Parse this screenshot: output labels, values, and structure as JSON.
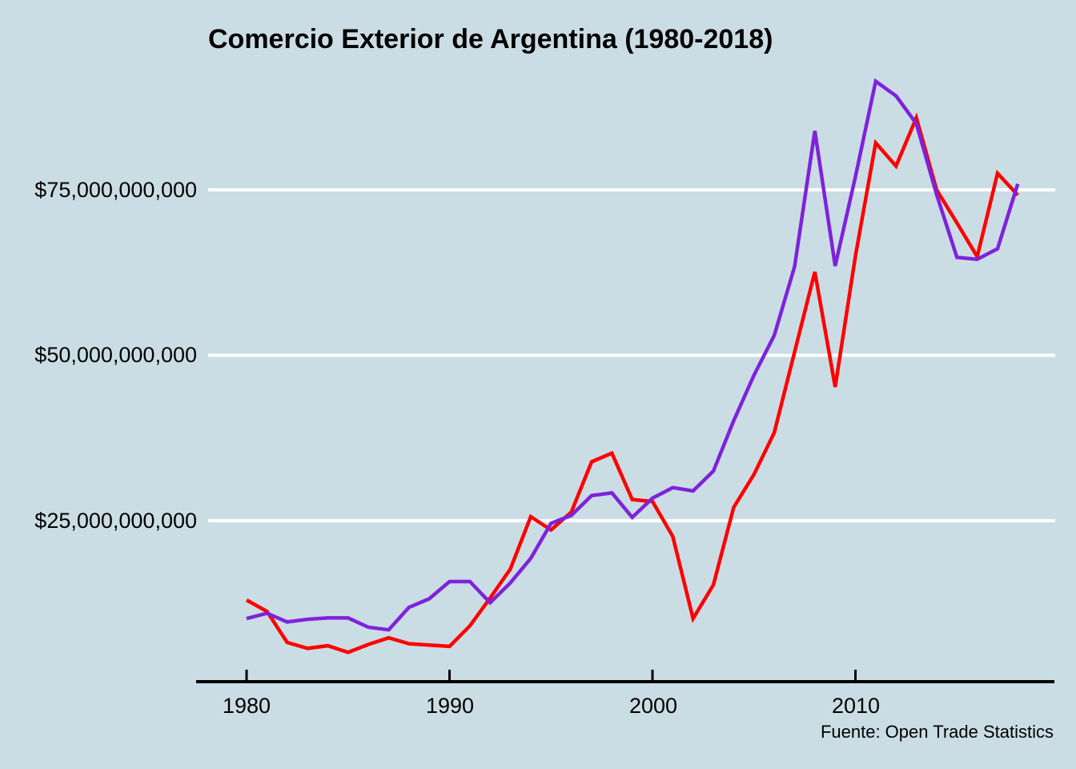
{
  "title": "Comercio Exterior de Argentina (1980-2018)",
  "source_note": "Fuente: Open Trade Statistics",
  "colors": {
    "background": "#CBDDE4",
    "grid": "#FFFFFF",
    "axis": "#000000",
    "text": "#000000",
    "series_red": "#FF0000",
    "series_purple": "#7E22DC"
  },
  "chart_data": {
    "type": "line",
    "title": "Comercio Exterior de Argentina (1980-2018)",
    "xlabel": "",
    "ylabel": "",
    "unit": "USD",
    "grid": "horizontal-white-lines",
    "legend_position": "none",
    "x": [
      1980,
      1981,
      1982,
      1983,
      1984,
      1985,
      1986,
      1987,
      1988,
      1989,
      1990,
      1991,
      1992,
      1993,
      1994,
      1995,
      1996,
      1997,
      1998,
      1999,
      2000,
      2001,
      2002,
      2003,
      2004,
      2005,
      2006,
      2007,
      2008,
      2009,
      2010,
      2011,
      2012,
      2013,
      2014,
      2015,
      2016,
      2017,
      2018
    ],
    "series": [
      {
        "name": "series-red",
        "color_key": "series_red",
        "values_billions_usd": [
          13.0,
          11.3,
          6.6,
          5.7,
          6.1,
          5.1,
          6.3,
          7.3,
          6.4,
          6.2,
          6.0,
          9.1,
          13.3,
          17.7,
          25.6,
          23.6,
          26.3,
          33.9,
          35.2,
          28.2,
          27.9,
          22.6,
          10.2,
          15.3,
          27.0,
          32.0,
          38.3,
          50.5,
          62.6,
          45.2,
          65.0,
          82.1,
          78.6,
          85.9,
          75.0,
          70.0,
          64.9,
          77.5,
          74.2
        ]
      },
      {
        "name": "series-purple",
        "color_key": "series_purple",
        "values_billions_usd": [
          10.2,
          11.0,
          9.7,
          10.1,
          10.3,
          10.3,
          8.9,
          8.5,
          11.9,
          13.2,
          15.8,
          15.8,
          12.6,
          15.6,
          19.3,
          24.6,
          25.8,
          28.8,
          29.2,
          25.5,
          28.4,
          30.0,
          29.5,
          32.5,
          40.1,
          47.0,
          53.0,
          63.4,
          83.9,
          63.5,
          77.0,
          91.4,
          89.2,
          85.0,
          74.3,
          64.8,
          64.5,
          66.1,
          75.9
        ]
      }
    ],
    "x_tick_labels": [
      "1980",
      "1990",
      "2000",
      "2010"
    ],
    "x_tick_years": [
      1980,
      1990,
      2000,
      2010
    ],
    "y_tick_labels": [
      "$25,000,000,000",
      "$50,000,000,000",
      "$75,000,000,000"
    ],
    "y_tick_values_billions": [
      25,
      50,
      75
    ],
    "xlim_years": [
      1977.5,
      2020.8
    ],
    "ylim_billions": [
      0,
      95
    ]
  }
}
